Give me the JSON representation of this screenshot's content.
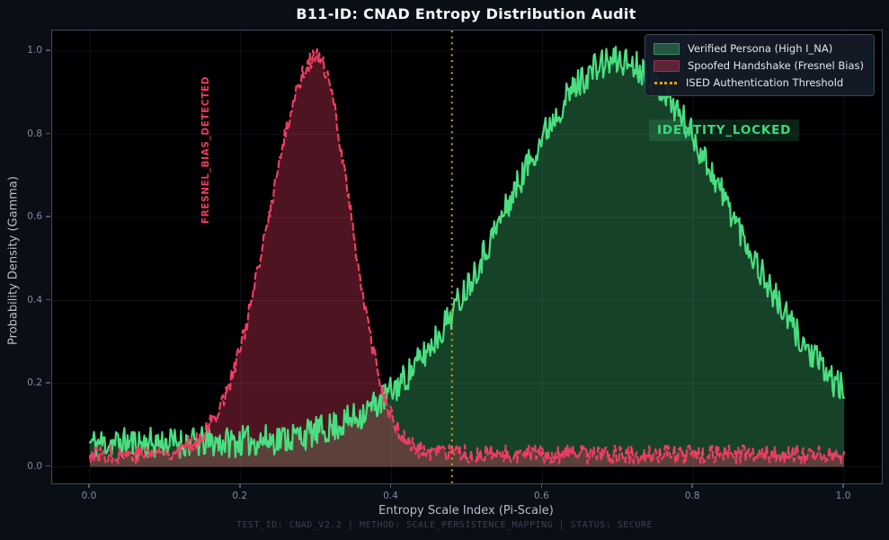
{
  "figure": {
    "title": "B11-ID: CNAD Entropy Distribution Audit",
    "footer": "TEST_ID: CNAD_V2.2 | METHOD: SCALE_PERSISTENCE_MAPPING | STATUS: SECURE",
    "background_color": "#0a0e15",
    "plot_background_color": "#000002"
  },
  "chart_data": {
    "type": "line",
    "subtype": "noisy-density-curves",
    "title": "B11-ID: CNAD Entropy Distribution Audit",
    "xlabel": "Entropy Scale Index (Pi-Scale)",
    "ylabel": "Probability Density (Gamma)",
    "xlim": [
      -0.05,
      1.05
    ],
    "ylim": [
      -0.04,
      1.05
    ],
    "x_ticks": [
      0.0,
      0.2,
      0.4,
      0.6,
      0.8,
      1.0
    ],
    "y_ticks": [
      0.0,
      0.2,
      0.4,
      0.6,
      0.8,
      1.0
    ],
    "grid": true,
    "legend_position": "top-right",
    "series": [
      {
        "name": "Verified Persona (High I_NA)",
        "color": "#4ade80",
        "fill_color": "rgba(74,222,128,0.30)",
        "line_style": "solid",
        "line_width": 2.2,
        "shape": "gaussian",
        "mean": 0.7,
        "sigma_left": 0.15,
        "sigma_right": 0.15,
        "peak": 0.92,
        "noise_floor_min": 0.02,
        "noise_floor_max": 0.095,
        "x_range": [
          0,
          1
        ],
        "seed": 11
      },
      {
        "name": "Spoofed Handshake (Fresnel Bias)",
        "color": "#ee3d62",
        "fill_color": "rgba(238,61,98,0.33)",
        "line_style": "dashed",
        "line_width": 2.2,
        "shape": "gaussian",
        "mean": 0.3,
        "sigma_left": 0.062,
        "sigma_right": 0.046,
        "peak": 0.955,
        "noise_floor_min": 0.008,
        "noise_floor_max": 0.052,
        "x_range": [
          0,
          1
        ],
        "seed": 77
      }
    ],
    "threshold": {
      "label": "ISED Authentication Threshold",
      "x": 0.48,
      "color": "#d9a21b",
      "line_style": "dotted",
      "line_width": 2
    },
    "annotations": [
      {
        "text": "FRESNEL_BIAS_DETECTED",
        "color": "#ee3d62",
        "rotation": 90,
        "x": 0.155,
        "y": 0.76
      },
      {
        "text": "IDENTITY_LOCKED",
        "color": "#3fd87f",
        "box_color": "rgba(63,216,127,0.16)",
        "rotation": 0,
        "x": 0.83,
        "y": 0.81
      }
    ],
    "n_points": 720,
    "style": {
      "grid_color": "rgba(136,158,192,0.11)",
      "spine_color": "#3f4b5f",
      "tick_label_color": "#7e8ca1",
      "axis_label_color": "#b6bdc9",
      "title_color": "#f4f6f9",
      "footer_color": "#3b4452",
      "legend_bg": "rgba(20,27,40,0.96)",
      "legend_border": "#3a475d",
      "legend_text": "#e2e7ee"
    }
  }
}
